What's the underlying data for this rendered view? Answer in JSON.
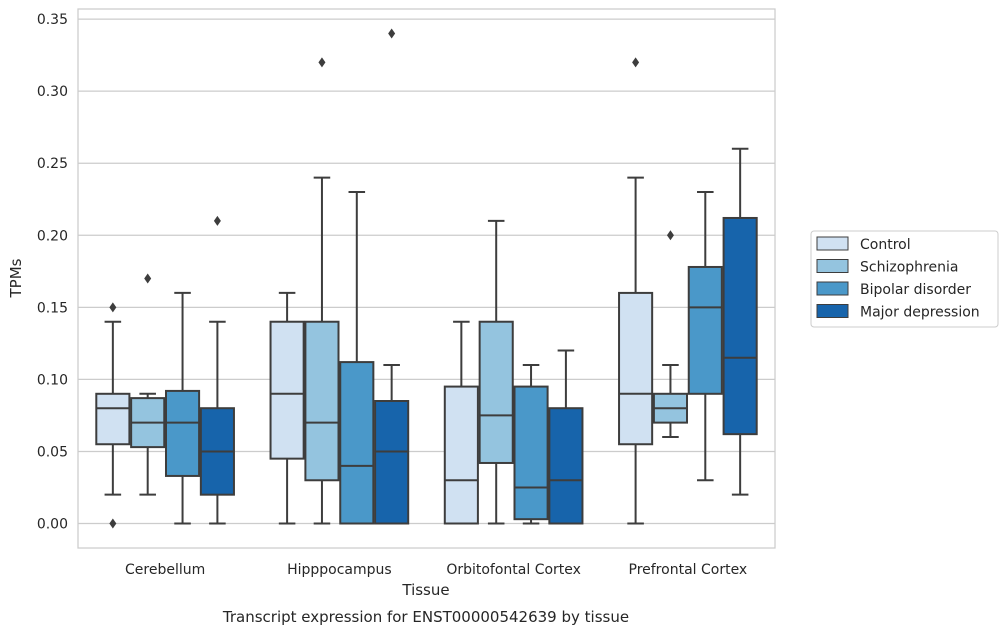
{
  "chart_data": {
    "type": "box",
    "caption": "Transcript expression for ENST00000542639 by tissue",
    "xlabel": "Tissue",
    "ylabel": "TPMs",
    "ylim": [
      -0.017,
      0.357
    ],
    "yticks": [
      "0.00",
      "0.05",
      "0.10",
      "0.15",
      "0.20",
      "0.25",
      "0.30",
      "0.35"
    ],
    "ytick_values": [
      0,
      0.05,
      0.1,
      0.15,
      0.2,
      0.25,
      0.3,
      0.35
    ],
    "grid": "horizontal",
    "legend_position": "right",
    "categories": [
      "Cerebellum",
      "Hipppocampus",
      "Orbitofontal Cortex",
      "Prefrontal Cortex"
    ],
    "series": [
      {
        "name": "Control",
        "color": "#d0e1f2",
        "boxes": [
          {
            "whislo": 0.02,
            "q1": 0.055,
            "med": 0.08,
            "q3": 0.09,
            "whishi": 0.14,
            "fliers": [
              0.15,
              0.0
            ]
          },
          {
            "whislo": 0.0,
            "q1": 0.045,
            "med": 0.09,
            "q3": 0.14,
            "whishi": 0.16,
            "fliers": []
          },
          {
            "whislo": 0.0,
            "q1": 0.0,
            "med": 0.03,
            "q3": 0.095,
            "whishi": 0.14,
            "fliers": []
          },
          {
            "whislo": 0.0,
            "q1": 0.055,
            "med": 0.09,
            "q3": 0.16,
            "whishi": 0.24,
            "fliers": [
              0.32
            ]
          }
        ]
      },
      {
        "name": "Schizophrenia",
        "color": "#94c4df",
        "boxes": [
          {
            "whislo": 0.02,
            "q1": 0.053,
            "med": 0.07,
            "q3": 0.087,
            "whishi": 0.09,
            "fliers": [
              0.17
            ]
          },
          {
            "whislo": 0.0,
            "q1": 0.03,
            "med": 0.07,
            "q3": 0.14,
            "whishi": 0.24,
            "fliers": [
              0.32
            ]
          },
          {
            "whislo": 0.0,
            "q1": 0.042,
            "med": 0.075,
            "q3": 0.14,
            "whishi": 0.21,
            "fliers": []
          },
          {
            "whislo": 0.06,
            "q1": 0.07,
            "med": 0.08,
            "q3": 0.09,
            "whishi": 0.11,
            "fliers": [
              0.2
            ]
          }
        ]
      },
      {
        "name": "Bipolar disorder",
        "color": "#4a98c9",
        "boxes": [
          {
            "whislo": 0.0,
            "q1": 0.033,
            "med": 0.07,
            "q3": 0.092,
            "whishi": 0.16,
            "fliers": []
          },
          {
            "whislo": 0.0,
            "q1": 0.0,
            "med": 0.04,
            "q3": 0.112,
            "whishi": 0.23,
            "fliers": []
          },
          {
            "whislo": 0.0,
            "q1": 0.003,
            "med": 0.025,
            "q3": 0.095,
            "whishi": 0.11,
            "fliers": []
          },
          {
            "whislo": 0.03,
            "q1": 0.09,
            "med": 0.15,
            "q3": 0.178,
            "whishi": 0.23,
            "fliers": []
          }
        ]
      },
      {
        "name": "Major depression",
        "color": "#1764ab",
        "boxes": [
          {
            "whislo": 0.0,
            "q1": 0.02,
            "med": 0.05,
            "q3": 0.08,
            "whishi": 0.14,
            "fliers": [
              0.21
            ]
          },
          {
            "whislo": 0.0,
            "q1": 0.0,
            "med": 0.05,
            "q3": 0.085,
            "whishi": 0.11,
            "fliers": [
              0.34
            ]
          },
          {
            "whislo": 0.0,
            "q1": 0.0,
            "med": 0.03,
            "q3": 0.08,
            "whishi": 0.12,
            "fliers": []
          },
          {
            "whislo": 0.02,
            "q1": 0.062,
            "med": 0.115,
            "q3": 0.212,
            "whishi": 0.26,
            "fliers": []
          }
        ]
      }
    ]
  }
}
